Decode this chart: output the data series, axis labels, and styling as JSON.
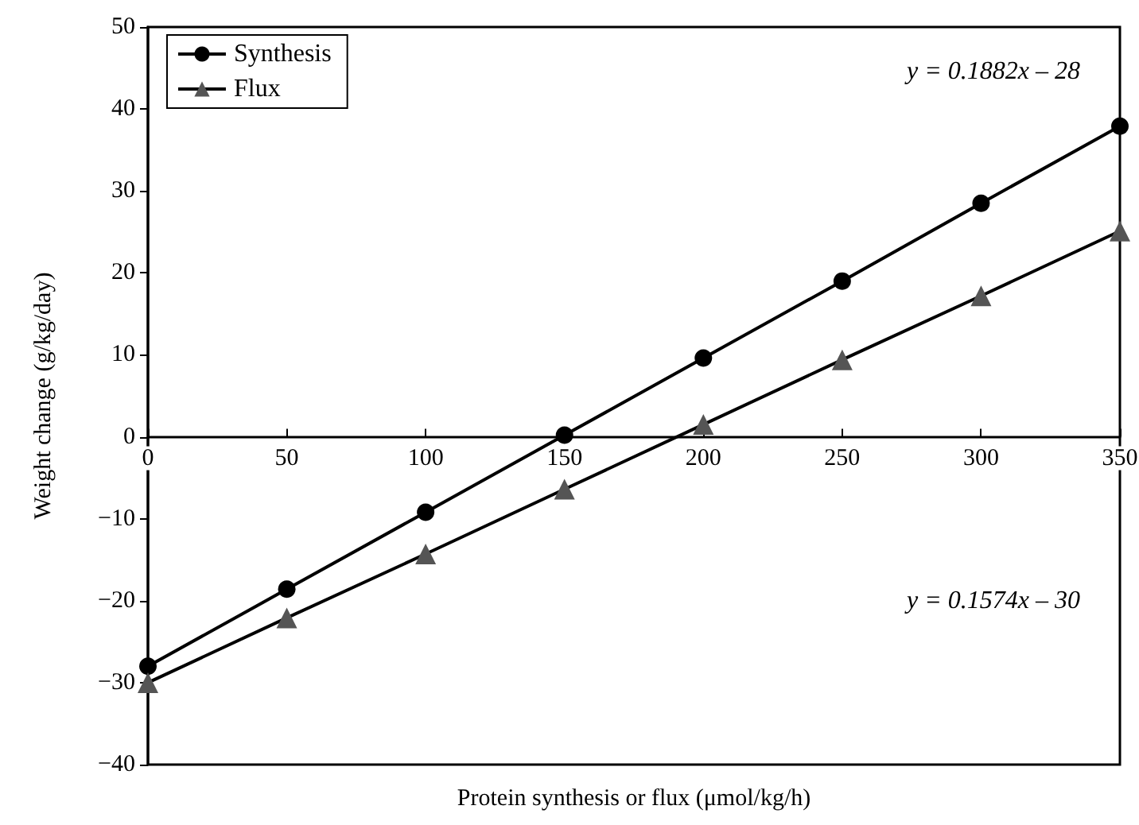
{
  "chart_data": {
    "type": "line",
    "xlabel": "Protein synthesis or flux (μmol/kg/h)",
    "ylabel": "Weight change (g/kg/day)",
    "x": [
      0,
      50,
      100,
      150,
      200,
      250,
      300,
      350
    ],
    "series": [
      {
        "name": "Synthesis",
        "color": "#000000",
        "marker": "circle",
        "values": [
          -28,
          -18.6,
          -9.2,
          0.2,
          9.6,
          19,
          28.5,
          37.9
        ]
      },
      {
        "name": "Flux",
        "color": "#555555",
        "marker": "triangle",
        "values": [
          -30,
          -22.1,
          -14.3,
          -6.4,
          1.5,
          9.4,
          17.2,
          25.1
        ]
      }
    ],
    "xlim": [
      0,
      350
    ],
    "xticks": [
      0,
      50,
      100,
      150,
      200,
      250,
      300,
      350
    ],
    "ylim": [
      -40,
      50
    ],
    "yticks": [
      -40,
      -30,
      -20,
      -10,
      0,
      10,
      20,
      30,
      40,
      50
    ],
    "annotations": [
      "y = 0.1882x – 28",
      "y = 0.1574x – 30"
    ],
    "legend": "top left",
    "grid": false,
    "line_style": "solid"
  }
}
